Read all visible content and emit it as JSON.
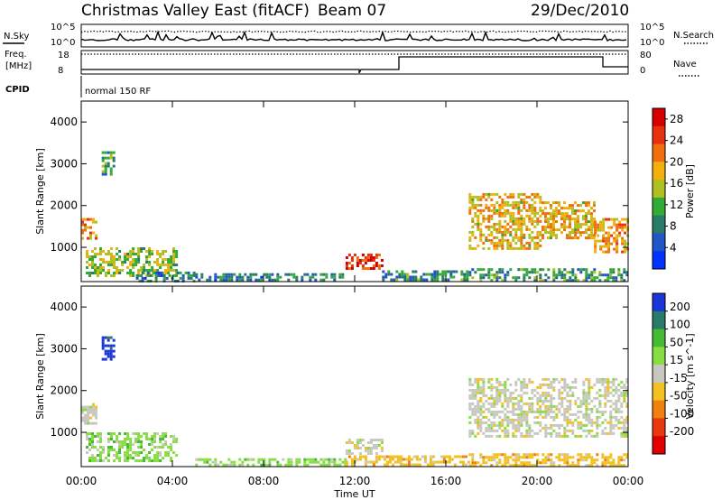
{
  "header": {
    "station": "Christmas Valley East (fitACF)",
    "beam": "Beam 07",
    "date": "29/Dec/2010"
  },
  "top_panels": {
    "nsky_label": "N.Sky",
    "nsearch_label": "N.Search",
    "noise_ticks": [
      "10^5",
      "10^0"
    ],
    "freq_label": "Freq.",
    "freq_unit": "[MHz]",
    "freq_ticks": [
      "18",
      "8"
    ],
    "nave_label": "Nave",
    "nave_ticks": [
      "80",
      "0"
    ],
    "cpid_label": "CPID",
    "cpid_value": "normal 150 RF"
  },
  "chart_data": [
    {
      "type": "heatmap",
      "title": "Power",
      "ylabel": "Slant Range [km]",
      "xlabel": "Time UT",
      "xlim": [
        0,
        24
      ],
      "ylim": [
        180,
        4500
      ],
      "xticks": [
        "00:00",
        "04:00",
        "08:00",
        "12:00",
        "16:00",
        "20:00",
        "00:00"
      ],
      "yticks": [
        1000,
        2000,
        3000,
        4000
      ],
      "colorbar": {
        "label": "Power [dB]",
        "ticks": [
          "4",
          "8",
          "12",
          "16",
          "20",
          "24",
          "28"
        ],
        "range": [
          0,
          30
        ],
        "colors": [
          "#0033ff",
          "#2255c8",
          "#2a7a6a",
          "#33aa33",
          "#b0c020",
          "#f2b010",
          "#f07010",
          "#e83010",
          "#d40000"
        ]
      },
      "regions": [
        {
          "t0": 0.0,
          "t1": 0.6,
          "r0": 1200,
          "r1": 1700,
          "level": 20
        },
        {
          "t0": 0.9,
          "t1": 1.4,
          "r0": 2750,
          "r1": 3300,
          "level": 10
        },
        {
          "t0": 0.2,
          "t1": 4.2,
          "r0": 350,
          "r1": 1000,
          "level": 14
        },
        {
          "t0": 2.4,
          "t1": 5.0,
          "r0": 200,
          "r1": 420,
          "level": 8
        },
        {
          "t0": 5.0,
          "t1": 11.6,
          "r0": 200,
          "r1": 380,
          "level": 8
        },
        {
          "t0": 11.6,
          "t1": 13.2,
          "r0": 500,
          "r1": 850,
          "level": 26
        },
        {
          "t0": 13.2,
          "t1": 17.0,
          "r0": 200,
          "r1": 450,
          "level": 9
        },
        {
          "t0": 17.0,
          "t1": 20.2,
          "r0": 1000,
          "r1": 2300,
          "level": 18
        },
        {
          "t0": 20.2,
          "t1": 22.5,
          "r0": 1200,
          "r1": 2100,
          "level": 18
        },
        {
          "t0": 22.5,
          "t1": 24.0,
          "r0": 900,
          "r1": 1700,
          "level": 20
        },
        {
          "t0": 17.0,
          "t1": 24.0,
          "r0": 200,
          "r1": 500,
          "level": 10
        }
      ]
    },
    {
      "type": "heatmap",
      "title": "Velocity",
      "ylabel": "Slant Range [km]",
      "xlabel": "Time UT",
      "xlim": [
        0,
        24
      ],
      "ylim": [
        180,
        4500
      ],
      "xticks": [
        "00:00",
        "04:00",
        "08:00",
        "12:00",
        "16:00",
        "20:00",
        "00:00"
      ],
      "yticks": [
        1000,
        2000,
        3000,
        4000
      ],
      "colorbar": {
        "label": "Velocity [m s^-1]",
        "ticks": [
          "200",
          "100",
          "50",
          "15",
          "-15",
          "-50",
          "-100",
          "-200"
        ],
        "colors": [
          "#1a35d8",
          "#2a7a6a",
          "#44bb33",
          "#88dd44",
          "#c8c8c0",
          "#f2c020",
          "#f08010",
          "#e83810",
          "#e00000"
        ]
      },
      "regions": [
        {
          "t0": 0.9,
          "t1": 1.4,
          "r0": 2750,
          "r1": 3300,
          "level": 0
        },
        {
          "t0": 0.0,
          "t1": 0.6,
          "r0": 1200,
          "r1": 1700,
          "level": 4
        },
        {
          "t0": 0.2,
          "t1": 4.2,
          "r0": 350,
          "r1": 1000,
          "level": 3
        },
        {
          "t0": 5.0,
          "t1": 11.6,
          "r0": 200,
          "r1": 380,
          "level": 3
        },
        {
          "t0": 11.6,
          "t1": 13.2,
          "r0": 500,
          "r1": 850,
          "level": 4
        },
        {
          "t0": 11.6,
          "t1": 17.0,
          "r0": 200,
          "r1": 450,
          "level": 5
        },
        {
          "t0": 17.0,
          "t1": 24.0,
          "r0": 900,
          "r1": 2300,
          "level": 4
        },
        {
          "t0": 17.0,
          "t1": 24.0,
          "r0": 200,
          "r1": 500,
          "level": 5
        }
      ]
    }
  ]
}
